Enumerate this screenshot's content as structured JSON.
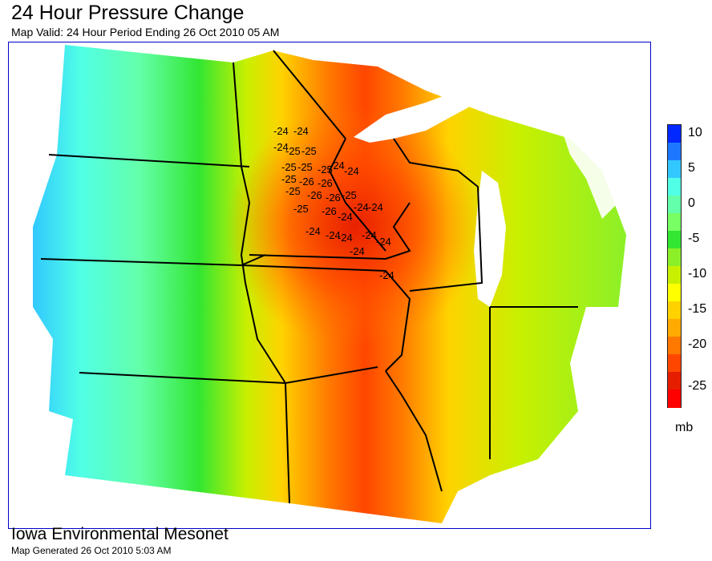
{
  "header": {
    "title": "24 Hour Pressure Change",
    "subtitle": "Map Valid: 24 Hour Period Ending 26 Oct 2010 05 AM"
  },
  "legend": {
    "unit": "mb",
    "ticks": [
      "10",
      "5",
      "0",
      "-5",
      "-10",
      "-15",
      "-20",
      "-25"
    ],
    "colors": [
      "#0028ff",
      "#1e78ff",
      "#32c8ff",
      "#50ffe6",
      "#64ffaa",
      "#78ff64",
      "#32e632",
      "#8cf028",
      "#c8f000",
      "#ffff00",
      "#ffd200",
      "#ffaa00",
      "#ff7800",
      "#ff4600",
      "#e61e00",
      "#ff0000"
    ]
  },
  "map": {
    "labels": [
      "-24",
      "-24",
      "-24",
      "-25",
      "-25",
      "-25",
      "-25",
      "-25",
      "-24",
      "-24",
      "-25",
      "-26",
      "-26",
      "-25",
      "-26",
      "-26",
      "-25",
      "-24",
      "-24",
      "-25",
      "-26",
      "-24",
      "-24",
      "-24",
      "-24",
      "-24",
      "-24",
      "-24",
      "-24"
    ]
  },
  "footer": {
    "org": "Iowa Environmental Mesonet",
    "generated": "Map Generated 26 Oct 2010 5:03 AM"
  }
}
